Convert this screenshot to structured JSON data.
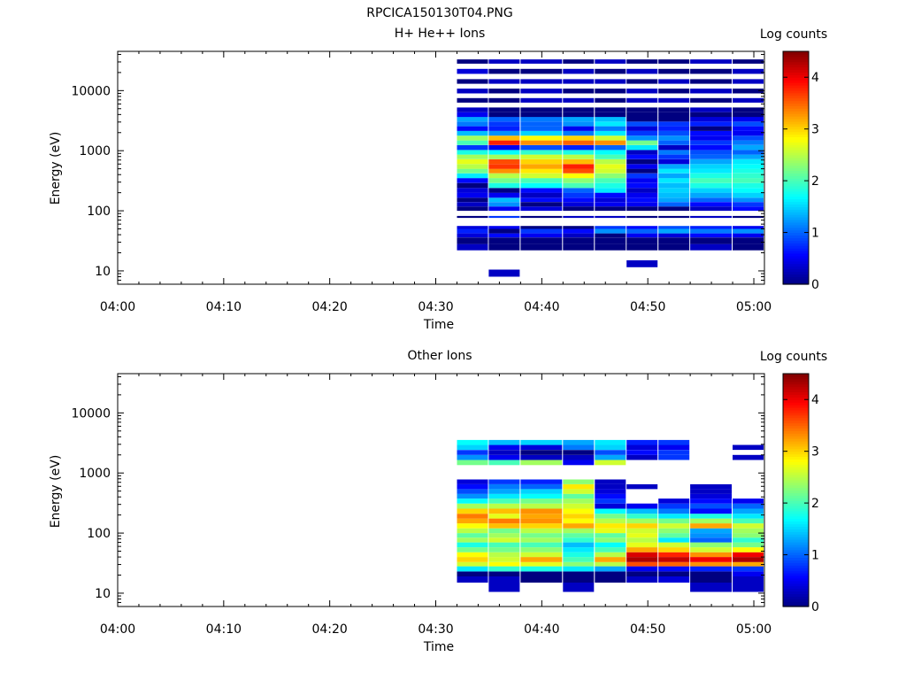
{
  "figure_title": "RPCICA150130T04.PNG",
  "chart_data": [
    {
      "type": "heatmap",
      "title": "H+ He++ Ions",
      "xlabel": "Time",
      "ylabel": "Energy (eV)",
      "colorbar_label": "Log counts",
      "y_scale": "log",
      "ylim": [
        6,
        45000
      ],
      "xlim": [
        "04:00",
        "05:01"
      ],
      "x_ticks": [
        "04:00",
        "04:10",
        "04:20",
        "04:30",
        "04:40",
        "04:50",
        "05:00"
      ],
      "y_ticks": [
        "10",
        "100",
        "1000",
        "10000"
      ],
      "colorbar_ticks": [
        "0",
        "1",
        "2",
        "3",
        "4"
      ],
      "colorbar_range": [
        0,
        4.5
      ],
      "colormap": "jet",
      "time_bins": [
        "04:32",
        "04:35",
        "04:38",
        "04:42",
        "04:45",
        "04:48",
        "04:51",
        "04:54",
        "04:58"
      ],
      "time_bin_end": "05:01",
      "energy_bins": [
        {
          "e_lo": 22,
          "e_hi": 28,
          "values": [
            0.3,
            0.0,
            0.0,
            0.0,
            0.0,
            0.0,
            0.0,
            0.3,
            0.0
          ]
        },
        {
          "e_lo": 28,
          "e_hi": 36,
          "values": [
            0.0,
            0.0,
            0.0,
            0.0,
            0.0,
            0.0,
            0.0,
            0.0,
            0.0
          ]
        },
        {
          "e_lo": 36,
          "e_hi": 42,
          "values": [
            0.4,
            0.6,
            0.5,
            0.3,
            0.0,
            0.5,
            0.4,
            0.6,
            0.5
          ]
        },
        {
          "e_lo": 42,
          "e_hi": 50,
          "values": [
            0.7,
            0.0,
            0.8,
            0.6,
            1.2,
            1.0,
            1.3,
            1.1,
            1.2
          ]
        },
        {
          "e_lo": 50,
          "e_hi": 56,
          "values": [
            0.4,
            0.5,
            0.0,
            0.0,
            0.8,
            0.6,
            0.9,
            0.7,
            0.5
          ]
        },
        {
          "e_lo": 76,
          "e_hi": 82,
          "values": [
            0.0,
            0.8,
            0.0,
            0.3,
            0.3,
            0.0,
            0.0,
            0.3,
            0.0
          ]
        },
        {
          "e_lo": 100,
          "e_hi": 118,
          "values": [
            0.0,
            0.5,
            0.4,
            0.0,
            0.0,
            0.0,
            0.0,
            0.3,
            0.6
          ]
        },
        {
          "e_lo": 118,
          "e_hi": 140,
          "values": [
            0.3,
            1.2,
            0.0,
            0.4,
            0.5,
            0.5,
            1.0,
            0.6,
            0.8
          ]
        },
        {
          "e_lo": 140,
          "e_hi": 165,
          "values": [
            0.0,
            1.4,
            0.6,
            0.6,
            0.4,
            0.6,
            1.3,
            1.0,
            1.2
          ]
        },
        {
          "e_lo": 165,
          "e_hi": 200,
          "values": [
            0.5,
            0.5,
            0.3,
            0.8,
            0.6,
            0.5,
            1.4,
            1.3,
            1.5
          ]
        },
        {
          "e_lo": 200,
          "e_hi": 240,
          "values": [
            0.4,
            0.0,
            0.6,
            1.0,
            1.6,
            0.3,
            1.5,
            1.5,
            1.7
          ]
        },
        {
          "e_lo": 240,
          "e_hi": 290,
          "values": [
            0.0,
            1.8,
            1.7,
            2.0,
            1.8,
            0.6,
            1.4,
            1.8,
            1.8
          ]
        },
        {
          "e_lo": 290,
          "e_hi": 350,
          "values": [
            0.6,
            2.2,
            2.0,
            2.3,
            2.0,
            0.5,
            1.6,
            2.0,
            2.0
          ]
        },
        {
          "e_lo": 350,
          "e_hi": 420,
          "values": [
            1.6,
            2.5,
            2.6,
            2.8,
            2.3,
            0.8,
            1.3,
            1.8,
            1.9
          ]
        },
        {
          "e_lo": 420,
          "e_hi": 500,
          "values": [
            2.2,
            3.3,
            2.9,
            3.6,
            2.6,
            0.0,
            1.6,
            1.6,
            1.8
          ]
        },
        {
          "e_lo": 500,
          "e_hi": 600,
          "values": [
            2.5,
            3.7,
            3.2,
            3.8,
            2.7,
            0.5,
            1.3,
            1.5,
            1.7
          ]
        },
        {
          "e_lo": 600,
          "e_hi": 720,
          "values": [
            2.7,
            3.6,
            3.0,
            3.1,
            2.5,
            0.0,
            0.4,
            1.3,
            1.6
          ]
        },
        {
          "e_lo": 720,
          "e_hi": 860,
          "values": [
            2.4,
            2.4,
            2.6,
            2.5,
            2.0,
            0.6,
            0.8,
            1.0,
            1.3
          ]
        },
        {
          "e_lo": 860,
          "e_hi": 1030,
          "values": [
            1.8,
            1.7,
            1.9,
            1.8,
            1.7,
            0.3,
            1.1,
            0.9,
            1.0
          ]
        },
        {
          "e_lo": 1030,
          "e_hi": 1240,
          "values": [
            0.8,
            0.5,
            0.9,
            0.7,
            1.0,
            1.6,
            0.3,
            0.6,
            1.3
          ]
        },
        {
          "e_lo": 1240,
          "e_hi": 1480,
          "values": [
            2.0,
            3.8,
            3.3,
            3.5,
            3.3,
            2.2,
            1.0,
            0.8,
            1.1
          ]
        },
        {
          "e_lo": 1480,
          "e_hi": 1780,
          "values": [
            2.4,
            3.1,
            2.8,
            3.0,
            2.6,
            1.2,
            1.2,
            0.5,
            0.9
          ]
        },
        {
          "e_lo": 1780,
          "e_hi": 2130,
          "values": [
            1.4,
            1.2,
            1.5,
            1.1,
            1.6,
            0.8,
            0.9,
            0.6,
            0.5
          ]
        },
        {
          "e_lo": 2130,
          "e_hi": 2550,
          "values": [
            0.6,
            0.7,
            1.0,
            0.5,
            1.1,
            0.4,
            0.7,
            0.0,
            0.6
          ]
        },
        {
          "e_lo": 2550,
          "e_hi": 3050,
          "values": [
            1.1,
            0.8,
            1.0,
            1.2,
            1.6,
            0.9,
            0.8,
            0.7,
            0.9
          ]
        },
        {
          "e_lo": 3050,
          "e_hi": 3650,
          "values": [
            1.3,
            1.0,
            1.1,
            1.3,
            1.4,
            0.0,
            0.0,
            0.4,
            0.5
          ]
        },
        {
          "e_lo": 3650,
          "e_hi": 4380,
          "values": [
            0.5,
            0.0,
            0.0,
            0.0,
            0.0,
            0.0,
            0.0,
            0.0,
            0.0
          ]
        },
        {
          "e_lo": 4380,
          "e_hi": 5240,
          "values": [
            0.3,
            0.0,
            0.0,
            0.0,
            0.0,
            0.0,
            0.0,
            0.3,
            0.0
          ]
        },
        {
          "e_lo": 6300,
          "e_hi": 7500,
          "values": [
            0.0,
            0.0,
            0.3,
            0.3,
            0.0,
            0.3,
            0.3,
            0.0,
            0.3
          ]
        },
        {
          "e_lo": 9000,
          "e_hi": 10800,
          "values": [
            0.3,
            0.0,
            0.3,
            0.0,
            0.0,
            0.3,
            0.0,
            0.3,
            0.0
          ]
        },
        {
          "e_lo": 13000,
          "e_hi": 15500,
          "values": [
            0.0,
            0.3,
            0.3,
            0.3,
            0.3,
            0.0,
            0.3,
            0.0,
            0.3
          ]
        },
        {
          "e_lo": 19000,
          "e_hi": 23000,
          "values": [
            0.4,
            0.0,
            0.0,
            0.3,
            0.0,
            0.3,
            0.0,
            0.0,
            0.3
          ]
        },
        {
          "e_lo": 28000,
          "e_hi": 33000,
          "values": [
            0.0,
            0.3,
            0.3,
            0.0,
            0.3,
            0.0,
            0.0,
            0.3,
            0.0
          ]
        },
        {
          "e_lo": 8,
          "e_hi": 10.5,
          "values": [
            null,
            0.3,
            null,
            null,
            null,
            null,
            null,
            null,
            null
          ]
        },
        {
          "e_lo": 11.5,
          "e_hi": 15,
          "values": [
            null,
            null,
            null,
            null,
            null,
            0.3,
            null,
            null,
            null
          ]
        }
      ]
    },
    {
      "type": "heatmap",
      "title": "Other Ions",
      "xlabel": "Time",
      "ylabel": "Energy (eV)",
      "colorbar_label": "Log counts",
      "y_scale": "log",
      "ylim": [
        6,
        45000
      ],
      "xlim": [
        "04:00",
        "05:01"
      ],
      "x_ticks": [
        "04:00",
        "04:10",
        "04:20",
        "04:30",
        "04:40",
        "04:50",
        "05:00"
      ],
      "y_ticks": [
        "10",
        "100",
        "1000",
        "10000"
      ],
      "colorbar_ticks": [
        "0",
        "1",
        "2",
        "3",
        "4"
      ],
      "colorbar_range": [
        0,
        4.5
      ],
      "colormap": "jet",
      "time_bins": [
        "04:32",
        "04:35",
        "04:38",
        "04:42",
        "04:45",
        "04:48",
        "04:51",
        "04:54",
        "04:58"
      ],
      "time_bin_end": "05:01",
      "energy_bins": [
        {
          "e_lo": 10.5,
          "e_hi": 15,
          "values": [
            null,
            0.3,
            null,
            0.3,
            null,
            null,
            null,
            0.3,
            0.3
          ]
        },
        {
          "e_lo": 15,
          "e_hi": 19,
          "values": [
            0.3,
            0.3,
            0.0,
            0.0,
            0.0,
            0.3,
            0.4,
            0.0,
            0.3
          ]
        },
        {
          "e_lo": 19,
          "e_hi": 23,
          "values": [
            0.0,
            0.0,
            0.0,
            0.0,
            0.0,
            0.0,
            0.0,
            0.0,
            0.5
          ]
        },
        {
          "e_lo": 23,
          "e_hi": 28,
          "values": [
            1.6,
            1.9,
            1.8,
            1.6,
            1.3,
            0.5,
            0.6,
            0.7,
            0.8
          ]
        },
        {
          "e_lo": 28,
          "e_hi": 33,
          "values": [
            2.6,
            2.8,
            2.7,
            2.3,
            2.5,
            3.6,
            3.5,
            3.3,
            3.2
          ]
        },
        {
          "e_lo": 33,
          "e_hi": 40,
          "values": [
            3.0,
            2.6,
            3.2,
            2.0,
            3.2,
            4.3,
            4.2,
            4.0,
            4.3
          ]
        },
        {
          "e_lo": 40,
          "e_hi": 48,
          "values": [
            2.8,
            2.5,
            2.6,
            1.8,
            2.5,
            4.1,
            3.8,
            3.3,
            4.0
          ]
        },
        {
          "e_lo": 48,
          "e_hi": 58,
          "values": [
            2.2,
            2.2,
            2.3,
            1.6,
            2.0,
            3.2,
            3.0,
            2.6,
            2.8
          ]
        },
        {
          "e_lo": 58,
          "e_hi": 70,
          "values": [
            1.8,
            2.0,
            2.0,
            1.4,
            1.7,
            2.7,
            2.6,
            2.3,
            2.2
          ]
        },
        {
          "e_lo": 70,
          "e_hi": 84,
          "values": [
            2.4,
            2.6,
            2.4,
            1.9,
            2.3,
            2.5,
            1.6,
            1.0,
            1.9
          ]
        },
        {
          "e_lo": 84,
          "e_hi": 100,
          "values": [
            2.1,
            2.4,
            2.2,
            2.1,
            2.1,
            2.7,
            2.1,
            1.2,
            2.3
          ]
        },
        {
          "e_lo": 100,
          "e_hi": 120,
          "values": [
            2.5,
            2.2,
            2.5,
            2.4,
            2.7,
            2.6,
            2.3,
            1.3,
            2.4
          ]
        },
        {
          "e_lo": 120,
          "e_hi": 145,
          "values": [
            2.8,
            3.1,
            3.0,
            3.2,
            2.9,
            3.0,
            2.6,
            3.2,
            2.6
          ]
        },
        {
          "e_lo": 145,
          "e_hi": 175,
          "values": [
            3.2,
            3.4,
            3.3,
            2.8,
            2.5,
            2.4,
            2.2,
            2.4,
            2.0
          ]
        },
        {
          "e_lo": 175,
          "e_hi": 210,
          "values": [
            3.4,
            2.7,
            3.2,
            3.0,
            2.2,
            1.9,
            1.6,
            1.8,
            1.6
          ]
        },
        {
          "e_lo": 210,
          "e_hi": 255,
          "values": [
            3.0,
            3.1,
            3.3,
            2.8,
            1.7,
            1.4,
            1.1,
            0.6,
            1.3
          ]
        },
        {
          "e_lo": 255,
          "e_hi": 310,
          "values": [
            2.4,
            2.5,
            2.5,
            2.6,
            0.4,
            0.5,
            0.8,
            0.9,
            1.0
          ]
        },
        {
          "e_lo": 310,
          "e_hi": 375,
          "values": [
            1.7,
            2.0,
            2.2,
            2.4,
            0.8,
            null,
            0.4,
            0.6,
            0.5
          ]
        },
        {
          "e_lo": 375,
          "e_hi": 450,
          "values": [
            1.2,
            1.6,
            1.7,
            2.1,
            0.6,
            null,
            null,
            0.4,
            null
          ]
        },
        {
          "e_lo": 450,
          "e_hi": 540,
          "values": [
            0.9,
            1.3,
            1.5,
            2.6,
            0.4,
            null,
            null,
            0.3,
            null
          ]
        },
        {
          "e_lo": 540,
          "e_hi": 650,
          "values": [
            0.6,
            1.1,
            1.0,
            2.9,
            0.3,
            0.3,
            null,
            0.3,
            null
          ]
        },
        {
          "e_lo": 650,
          "e_hi": 780,
          "values": [
            0.4,
            0.8,
            0.7,
            2.3,
            0.3,
            null,
            null,
            null,
            null
          ]
        },
        {
          "e_lo": 1350,
          "e_hi": 1650,
          "values": [
            2.2,
            2.0,
            2.4,
            0.5,
            2.6,
            null,
            null,
            null,
            null
          ]
        },
        {
          "e_lo": 1650,
          "e_hi": 2000,
          "values": [
            1.2,
            0.5,
            0.3,
            0.3,
            1.3,
            0.3,
            0.8,
            null,
            0.3
          ]
        },
        {
          "e_lo": 2000,
          "e_hi": 2420,
          "values": [
            0.8,
            0.3,
            0.0,
            0.0,
            0.9,
            0.6,
            0.8,
            null,
            null
          ]
        },
        {
          "e_lo": 2420,
          "e_hi": 2930,
          "values": [
            1.5,
            0.5,
            0.4,
            1.1,
            1.5,
            0.4,
            0.5,
            null,
            0.3
          ]
        },
        {
          "e_lo": 2930,
          "e_hi": 3550,
          "values": [
            1.7,
            1.4,
            1.5,
            1.3,
            1.6,
            0.7,
            0.8,
            null,
            null
          ]
        }
      ]
    }
  ]
}
